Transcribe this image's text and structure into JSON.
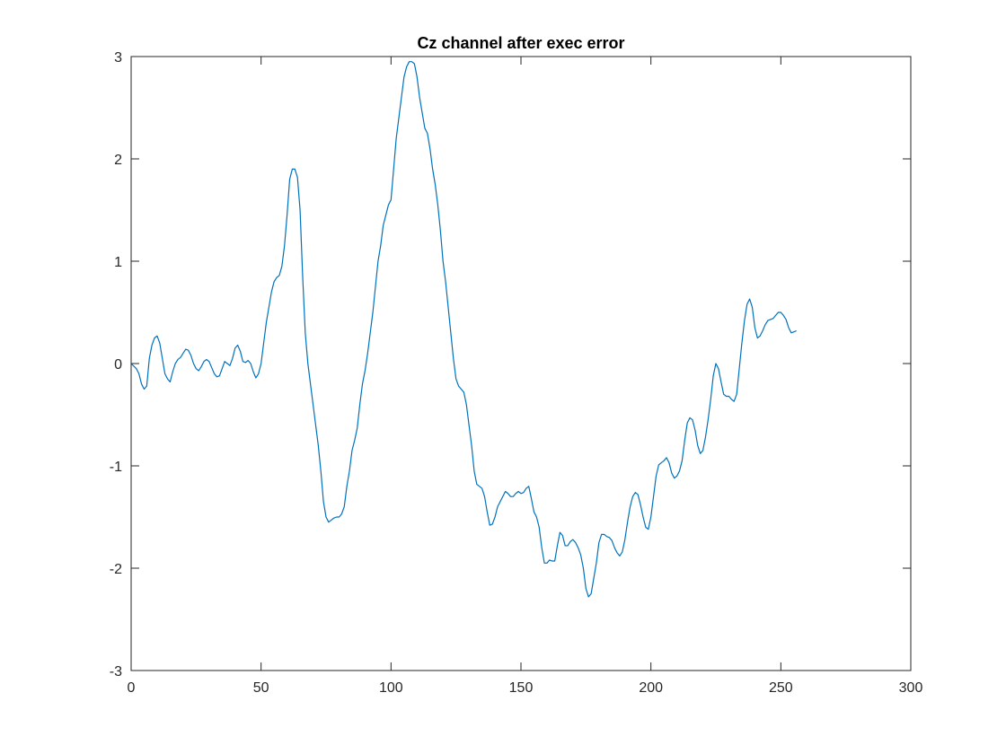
{
  "chart_data": {
    "type": "line",
    "title": "Cz channel after exec error",
    "xlabel": "",
    "ylabel": "",
    "xlim": [
      0,
      300
    ],
    "ylim": [
      -3,
      3
    ],
    "xticks": [
      0,
      50,
      100,
      150,
      200,
      250,
      300
    ],
    "yticks": [
      -3,
      -2,
      -1,
      0,
      1,
      2,
      3
    ],
    "xtick_labels": [
      "0",
      "50",
      "100",
      "150",
      "200",
      "250",
      "300"
    ],
    "ytick_labels": [
      "-3",
      "-2",
      "-1",
      "0",
      "1",
      "2",
      "3"
    ],
    "grid": false,
    "box": true,
    "series": [
      {
        "color": "#0072bd",
        "points": [
          [
            0,
            0.0
          ],
          [
            2,
            -0.05
          ],
          [
            3,
            -0.1
          ],
          [
            4,
            -0.2
          ],
          [
            5,
            -0.25
          ],
          [
            6,
            -0.22
          ],
          [
            7,
            0.05
          ],
          [
            8,
            0.18
          ],
          [
            9,
            0.25
          ],
          [
            10,
            0.27
          ],
          [
            11,
            0.2
          ],
          [
            12,
            0.05
          ],
          [
            13,
            -0.1
          ],
          [
            14,
            -0.15
          ],
          [
            15,
            -0.18
          ],
          [
            16,
            -0.08
          ],
          [
            17,
            0.0
          ],
          [
            18,
            0.04
          ],
          [
            19,
            0.06
          ],
          [
            20,
            0.1
          ],
          [
            21,
            0.14
          ],
          [
            22,
            0.13
          ],
          [
            23,
            0.08
          ],
          [
            24,
            0.0
          ],
          [
            25,
            -0.05
          ],
          [
            26,
            -0.07
          ],
          [
            27,
            -0.03
          ],
          [
            28,
            0.02
          ],
          [
            29,
            0.04
          ],
          [
            30,
            0.02
          ],
          [
            31,
            -0.04
          ],
          [
            32,
            -0.1
          ],
          [
            33,
            -0.13
          ],
          [
            34,
            -0.12
          ],
          [
            35,
            -0.05
          ],
          [
            36,
            0.02
          ],
          [
            37,
            0.0
          ],
          [
            38,
            -0.02
          ],
          [
            39,
            0.05
          ],
          [
            40,
            0.15
          ],
          [
            41,
            0.18
          ],
          [
            42,
            0.12
          ],
          [
            43,
            0.02
          ],
          [
            44,
            0.01
          ],
          [
            45,
            0.03
          ],
          [
            46,
            0.0
          ],
          [
            47,
            -0.08
          ],
          [
            48,
            -0.14
          ],
          [
            49,
            -0.1
          ],
          [
            50,
            0.0
          ],
          [
            51,
            0.2
          ],
          [
            52,
            0.4
          ],
          [
            53,
            0.55
          ],
          [
            54,
            0.7
          ],
          [
            55,
            0.8
          ],
          [
            56,
            0.84
          ],
          [
            57,
            0.86
          ],
          [
            58,
            0.95
          ],
          [
            59,
            1.15
          ],
          [
            60,
            1.45
          ],
          [
            61,
            1.8
          ],
          [
            62,
            1.9
          ],
          [
            63,
            1.9
          ],
          [
            64,
            1.82
          ],
          [
            65,
            1.5
          ],
          [
            66,
            0.85
          ],
          [
            67,
            0.3
          ],
          [
            68,
            0.0
          ],
          [
            69,
            -0.2
          ],
          [
            70,
            -0.4
          ],
          [
            71,
            -0.6
          ],
          [
            72,
            -0.8
          ],
          [
            73,
            -1.05
          ],
          [
            74,
            -1.35
          ],
          [
            75,
            -1.5
          ],
          [
            76,
            -1.55
          ],
          [
            77,
            -1.53
          ],
          [
            78,
            -1.51
          ],
          [
            79,
            -1.5
          ],
          [
            80,
            -1.5
          ],
          [
            81,
            -1.47
          ],
          [
            82,
            -1.4
          ],
          [
            83,
            -1.2
          ],
          [
            84,
            -1.05
          ],
          [
            85,
            -0.85
          ],
          [
            86,
            -0.75
          ],
          [
            87,
            -0.63
          ],
          [
            88,
            -0.4
          ],
          [
            89,
            -0.2
          ],
          [
            90,
            -0.07
          ],
          [
            91,
            0.1
          ],
          [
            92,
            0.3
          ],
          [
            93,
            0.5
          ],
          [
            94,
            0.75
          ],
          [
            95,
            1.0
          ],
          [
            96,
            1.15
          ],
          [
            97,
            1.35
          ],
          [
            98,
            1.45
          ],
          [
            99,
            1.55
          ],
          [
            100,
            1.6
          ],
          [
            101,
            1.9
          ],
          [
            102,
            2.2
          ],
          [
            103,
            2.4
          ],
          [
            104,
            2.6
          ],
          [
            105,
            2.8
          ],
          [
            106,
            2.9
          ],
          [
            107,
            2.95
          ],
          [
            108,
            2.95
          ],
          [
            109,
            2.93
          ],
          [
            110,
            2.8
          ],
          [
            111,
            2.6
          ],
          [
            112,
            2.45
          ],
          [
            113,
            2.3
          ],
          [
            114,
            2.25
          ],
          [
            115,
            2.1
          ],
          [
            116,
            1.9
          ],
          [
            117,
            1.75
          ],
          [
            118,
            1.55
          ],
          [
            119,
            1.3
          ],
          [
            120,
            1.0
          ],
          [
            121,
            0.8
          ],
          [
            122,
            0.55
          ],
          [
            123,
            0.3
          ],
          [
            124,
            0.05
          ],
          [
            125,
            -0.15
          ],
          [
            126,
            -0.22
          ],
          [
            127,
            -0.25
          ],
          [
            128,
            -0.28
          ],
          [
            129,
            -0.4
          ],
          [
            130,
            -0.6
          ],
          [
            131,
            -0.8
          ],
          [
            132,
            -1.05
          ],
          [
            133,
            -1.18
          ],
          [
            134,
            -1.2
          ],
          [
            135,
            -1.22
          ],
          [
            136,
            -1.3
          ],
          [
            137,
            -1.45
          ],
          [
            138,
            -1.58
          ],
          [
            139,
            -1.57
          ],
          [
            140,
            -1.5
          ],
          [
            141,
            -1.4
          ],
          [
            142,
            -1.35
          ],
          [
            143,
            -1.3
          ],
          [
            144,
            -1.25
          ],
          [
            145,
            -1.27
          ],
          [
            146,
            -1.3
          ],
          [
            147,
            -1.3
          ],
          [
            148,
            -1.27
          ],
          [
            149,
            -1.25
          ],
          [
            150,
            -1.27
          ],
          [
            151,
            -1.26
          ],
          [
            152,
            -1.22
          ],
          [
            153,
            -1.2
          ],
          [
            154,
            -1.32
          ],
          [
            155,
            -1.45
          ],
          [
            156,
            -1.5
          ],
          [
            157,
            -1.6
          ],
          [
            158,
            -1.8
          ],
          [
            159,
            -1.95
          ],
          [
            160,
            -1.95
          ],
          [
            161,
            -1.92
          ],
          [
            162,
            -1.93
          ],
          [
            163,
            -1.93
          ],
          [
            164,
            -1.78
          ],
          [
            165,
            -1.65
          ],
          [
            166,
            -1.68
          ],
          [
            167,
            -1.78
          ],
          [
            168,
            -1.78
          ],
          [
            169,
            -1.74
          ],
          [
            170,
            -1.72
          ],
          [
            171,
            -1.75
          ],
          [
            172,
            -1.8
          ],
          [
            173,
            -1.87
          ],
          [
            174,
            -2.0
          ],
          [
            175,
            -2.2
          ],
          [
            176,
            -2.28
          ],
          [
            177,
            -2.25
          ],
          [
            178,
            -2.1
          ],
          [
            179,
            -1.95
          ],
          [
            180,
            -1.75
          ],
          [
            181,
            -1.67
          ],
          [
            182,
            -1.67
          ],
          [
            183,
            -1.69
          ],
          [
            184,
            -1.7
          ],
          [
            185,
            -1.73
          ],
          [
            186,
            -1.8
          ],
          [
            187,
            -1.85
          ],
          [
            188,
            -1.88
          ],
          [
            189,
            -1.84
          ],
          [
            190,
            -1.72
          ],
          [
            191,
            -1.55
          ],
          [
            192,
            -1.4
          ],
          [
            193,
            -1.3
          ],
          [
            194,
            -1.26
          ],
          [
            195,
            -1.28
          ],
          [
            196,
            -1.38
          ],
          [
            197,
            -1.5
          ],
          [
            198,
            -1.6
          ],
          [
            199,
            -1.62
          ],
          [
            200,
            -1.5
          ],
          [
            201,
            -1.3
          ],
          [
            202,
            -1.1
          ],
          [
            203,
            -0.99
          ],
          [
            204,
            -0.97
          ],
          [
            205,
            -0.95
          ],
          [
            206,
            -0.92
          ],
          [
            207,
            -0.97
          ],
          [
            208,
            -1.07
          ],
          [
            209,
            -1.12
          ],
          [
            210,
            -1.1
          ],
          [
            211,
            -1.05
          ],
          [
            212,
            -0.95
          ],
          [
            213,
            -0.75
          ],
          [
            214,
            -0.58
          ],
          [
            215,
            -0.53
          ],
          [
            216,
            -0.55
          ],
          [
            217,
            -0.65
          ],
          [
            218,
            -0.8
          ],
          [
            219,
            -0.88
          ],
          [
            220,
            -0.85
          ],
          [
            221,
            -0.72
          ],
          [
            222,
            -0.55
          ],
          [
            223,
            -0.35
          ],
          [
            224,
            -0.12
          ],
          [
            225,
            0.0
          ],
          [
            226,
            -0.05
          ],
          [
            227,
            -0.18
          ],
          [
            228,
            -0.3
          ],
          [
            229,
            -0.32
          ],
          [
            230,
            -0.32
          ],
          [
            231,
            -0.35
          ],
          [
            232,
            -0.37
          ],
          [
            233,
            -0.3
          ],
          [
            234,
            -0.05
          ],
          [
            235,
            0.2
          ],
          [
            236,
            0.42
          ],
          [
            237,
            0.58
          ],
          [
            238,
            0.63
          ],
          [
            239,
            0.55
          ],
          [
            240,
            0.35
          ],
          [
            241,
            0.25
          ],
          [
            242,
            0.27
          ],
          [
            243,
            0.32
          ],
          [
            244,
            0.38
          ],
          [
            245,
            0.42
          ],
          [
            246,
            0.43
          ],
          [
            247,
            0.44
          ],
          [
            248,
            0.47
          ],
          [
            249,
            0.5
          ],
          [
            250,
            0.5
          ],
          [
            251,
            0.47
          ],
          [
            252,
            0.43
          ],
          [
            253,
            0.35
          ],
          [
            254,
            0.3
          ],
          [
            255,
            0.31
          ],
          [
            256,
            0.32
          ]
        ]
      }
    ]
  }
}
